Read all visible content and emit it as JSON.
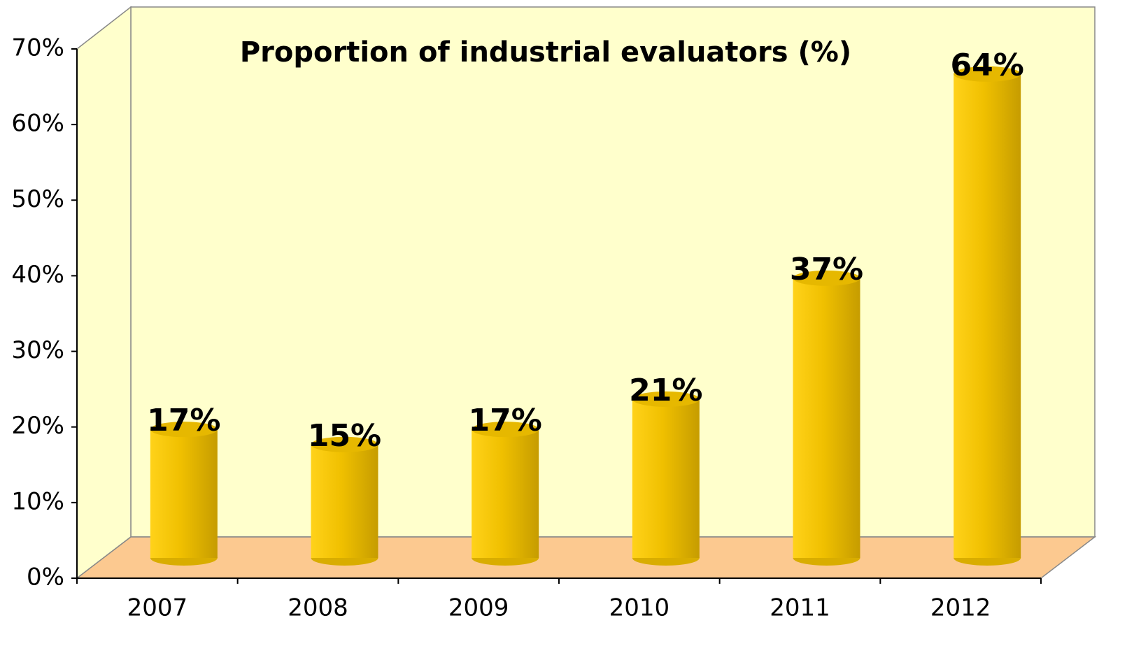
{
  "chart_data": {
    "type": "bar",
    "title": "Proportion of industrial evaluators (%)",
    "categories": [
      "2007",
      "2008",
      "2009",
      "2010",
      "2011",
      "2012"
    ],
    "values": [
      17,
      15,
      17,
      21,
      37,
      64
    ],
    "value_labels": [
      "17%",
      "15%",
      "17%",
      "21%",
      "37%",
      "64%"
    ],
    "color": "#ffcc00",
    "ylim": [
      0,
      70
    ],
    "yticks": [
      {
        "value": 0,
        "label": "0%"
      },
      {
        "value": 10,
        "label": "10%"
      },
      {
        "value": 20,
        "label": "20%"
      },
      {
        "value": 30,
        "label": "30%"
      },
      {
        "value": 40,
        "label": "40%"
      },
      {
        "value": 50,
        "label": "50%"
      },
      {
        "value": 60,
        "label": "60%"
      },
      {
        "value": 70,
        "label": "70%"
      }
    ]
  }
}
